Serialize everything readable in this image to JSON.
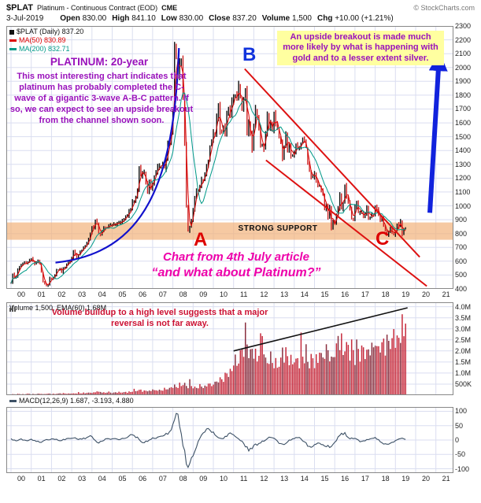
{
  "header": {
    "symbol": "$PLAT",
    "description": "Platinum - Continuous Contract (EOD)",
    "exchange": "CME",
    "copyright": "© StockCharts.com",
    "date": "3-Jul-2019",
    "quote": {
      "open_label": "Open",
      "open": "830.00",
      "high_label": "High",
      "high": "841.10",
      "low_label": "Low",
      "low": "830.00",
      "close_label": "Close",
      "close": "837.20",
      "volume_label": "Volume",
      "volume": "1,500",
      "chg_label": "Chg",
      "chg": "+10.00 (+1.21%)"
    }
  },
  "legend": {
    "main": "$PLAT (Daily) 837.20",
    "ma50": "MA(50) 830.89",
    "ma200": "MA(200) 832.71"
  },
  "volume_panel": {
    "legend": "Volume 1,500, EMA(60) 1.68M",
    "note": "Volume buildup to a high level suggests that a major reversal is not far away."
  },
  "macd_panel": {
    "legend": "MACD(12,26,9) 1.687, -3.193, 4.880"
  },
  "annotations": {
    "title": "PLATINUM: 20-year",
    "body": "This most interesting chart indicates that platinum has probably completed the C-wave of a gigantic 3-wave A-B-C pattern. If so, we can expect to see an upside breakout from the channel shown soon.",
    "breakout_note": "An upside breakout is made much more likely by what is happening with gold and to a lesser extent silver.",
    "support_label": "STRONG SUPPORT",
    "article_line1": "Chart from 4th July article",
    "article_line2": "“and what about Platinum?”",
    "wave_a": "A",
    "wave_b": "B",
    "wave_c": "C"
  },
  "axes": {
    "price_ticks": [
      "2300",
      "2200",
      "2100",
      "2000",
      "1900",
      "1800",
      "1700",
      "1600",
      "1500",
      "1400",
      "1300",
      "1200",
      "1100",
      "1000",
      "900",
      "800",
      "700",
      "600",
      "500",
      "400"
    ],
    "volume_ticks": [
      "4.0M",
      "3.5M",
      "3.0M",
      "2.5M",
      "2.0M",
      "1.5M",
      "1.0M",
      "500K"
    ],
    "macd_ticks": [
      "100",
      "50",
      "0",
      "-50",
      "-100"
    ],
    "year_ticks": [
      "00",
      "01",
      "02",
      "03",
      "04",
      "05",
      "06",
      "07",
      "08",
      "09",
      "10",
      "11",
      "12",
      "13",
      "14",
      "15",
      "16",
      "17",
      "18",
      "19",
      "20",
      "21"
    ]
  },
  "colors": {
    "purple_note": "#9911bb",
    "magenta_note": "#ee00aa",
    "red_note": "#cc1133",
    "support_band": "#f2b27a",
    "arrow": "#1122dd",
    "channel": "#dd1111",
    "parabola": "#1111cc",
    "candle_up": "#111111",
    "candle_down": "#cc2222",
    "ma50": "#dd0000",
    "ma200": "#009988",
    "volume_bar": "#c62a3c",
    "volume_bar_dark": "#8a2f3f",
    "macd_line": "#3d5166",
    "grid": "#dadef0",
    "panel_border": "#888888"
  },
  "chart_data": [
    {
      "type": "candlestick",
      "name": "$PLAT monthly close (approx, USD)",
      "title": "PLATINUM: 20-year",
      "x_start_year": 2000,
      "x_step_months": 1,
      "ylim": [
        400,
        2300
      ],
      "grid": true,
      "values": [
        440,
        510,
        480,
        490,
        540,
        560,
        570,
        580,
        590,
        580,
        590,
        610,
        620,
        600,
        580,
        590,
        610,
        580,
        520,
        450,
        440,
        420,
        430,
        480,
        470,
        480,
        500,
        540,
        540,
        550,
        520,
        550,
        560,
        580,
        590,
        600,
        620,
        680,
        650,
        630,
        650,
        670,
        680,
        700,
        710,
        730,
        760,
        800,
        850,
        840,
        900,
        880,
        800,
        790,
        810,
        850,
        840,
        840,
        860,
        860,
        860,
        870,
        870,
        870,
        880,
        880,
        890,
        900,
        930,
        930,
        960,
        970,
        1030,
        1040,
        1070,
        1110,
        1280,
        1220,
        1230,
        1240,
        1160,
        1090,
        1170,
        1120,
        1170,
        1220,
        1240,
        1280,
        1290,
        1290,
        1300,
        1270,
        1350,
        1450,
        1450,
        1530,
        1690,
        2150,
        2060,
        1940,
        2030,
        2060,
        1790,
        1450,
        1000,
        820,
        850,
        900,
        970,
        1060,
        1120,
        1110,
        1150,
        1190,
        1180,
        1230,
        1290,
        1320,
        1430,
        1470,
        1530,
        1520,
        1640,
        1740,
        1540,
        1530,
        1570,
        1520,
        1660,
        1700,
        1660,
        1750,
        1790,
        1800,
        1770,
        1870,
        1780,
        1710,
        1780,
        1850,
        1530,
        1600,
        1530,
        1400,
        1590,
        1700,
        1640,
        1570,
        1430,
        1440,
        1410,
        1530,
        1670,
        1570,
        1600,
        1540,
        1670,
        1590,
        1570,
        1500,
        1460,
        1340,
        1430,
        1520,
        1410,
        1450,
        1360,
        1370,
        1380,
        1440,
        1420,
        1420,
        1450,
        1480,
        1470,
        1420,
        1300,
        1250,
        1210,
        1210,
        1240,
        1190,
        1140,
        1140,
        1110,
        1080,
        980,
        1010,
        910,
        990,
        840,
        890,
        870,
        930,
        980,
        1080,
        980,
        1020,
        1150,
        1060,
        1030,
        980,
        910,
        900,
        990,
        1030,
        950,
        950,
        950,
        920,
        940,
        1000,
        910,
        920,
        940,
        930,
        1000,
        980,
        930,
        900,
        910,
        850,
        830,
        790,
        820,
        840,
        800,
        790,
        820,
        870,
        850,
        890,
        790,
        830,
        837
      ],
      "overlays": [
        "MA(50)",
        "MA(200)",
        "blue parabolic support curve 2002-2008",
        "red declining channel from B (2011) to C (2018-19)",
        "blue upside breakout arrow at right",
        "orange STRONG SUPPORT band approx 760-880"
      ]
    },
    {
      "type": "bar",
      "name": "Volume (millions of contracts, quarterly approx)",
      "x_start_year": 2000,
      "x_step_months": 3,
      "ylim": [
        0,
        4.2
      ],
      "values": [
        0.04,
        0.05,
        0.04,
        0.06,
        0.05,
        0.06,
        0.05,
        0.07,
        0.06,
        0.07,
        0.08,
        0.08,
        0.08,
        0.09,
        0.1,
        0.12,
        0.12,
        0.14,
        0.12,
        0.13,
        0.12,
        0.13,
        0.14,
        0.15,
        0.2,
        0.25,
        0.2,
        0.22,
        0.22,
        0.25,
        0.28,
        0.3,
        0.4,
        0.45,
        0.5,
        0.45,
        0.35,
        0.4,
        0.38,
        0.42,
        0.6,
        0.7,
        0.8,
        1.0,
        1.5,
        2.0,
        2.4,
        2.0,
        1.8,
        2.5,
        1.7,
        1.6,
        1.5,
        1.6,
        1.8,
        1.6,
        1.6,
        1.7,
        1.8,
        1.7,
        1.7,
        1.9,
        2.0,
        1.8,
        2.0,
        2.2,
        2.1,
        2.0,
        1.9,
        2.1,
        2.0,
        2.1,
        2.2,
        2.4,
        2.3,
        2.5,
        2.7,
        3.2,
        3.9
      ],
      "overlays": [
        "rising black trend line approx (2011, 2.0M) to (2019.6, 3.95M)"
      ]
    },
    {
      "type": "line",
      "name": "MACD(12,26,9) (quarterly approx)",
      "x_start_year": 2000,
      "x_step_months": 3,
      "ylim": [
        -115,
        115
      ],
      "values": [
        5,
        -3,
        4,
        -2,
        3,
        -5,
        -8,
        2,
        4,
        3,
        -2,
        5,
        6,
        4,
        3,
        9,
        12,
        -8,
        -4,
        5,
        4,
        3,
        6,
        9,
        18,
        10,
        -9,
        -5,
        8,
        10,
        14,
        20,
        55,
        90,
        -20,
        -95,
        -55,
        -5,
        25,
        40,
        28,
        8,
        5,
        22,
        18,
        4,
        -12,
        -38,
        -18,
        -12,
        -4,
        10,
        6,
        -12,
        -16,
        0,
        5,
        9,
        -6,
        -22,
        -16,
        -11,
        -21,
        -26,
        -8,
        16,
        26,
        4,
        6,
        -6,
        -3,
        4,
        9,
        -6,
        -13,
        -11,
        -2,
        5,
        2
      ]
    }
  ]
}
